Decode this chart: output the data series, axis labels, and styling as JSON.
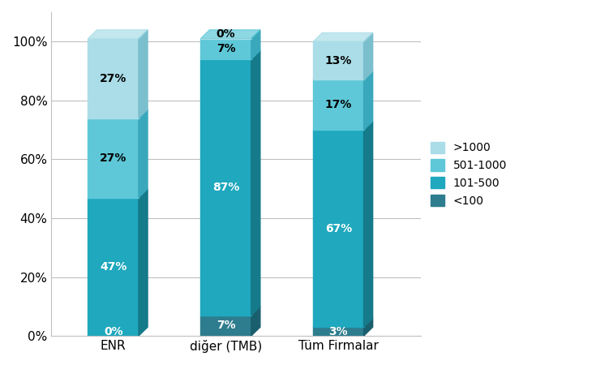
{
  "categories": [
    "ENR",
    "diğer (TMB)",
    "Tüm Firmalar"
  ],
  "series": {
    "<100": [
      0,
      7,
      3
    ],
    "101-500": [
      47,
      87,
      67
    ],
    "501-1000": [
      27,
      7,
      17
    ],
    ">1000": [
      27,
      0,
      13
    ]
  },
  "colors": {
    "<100": "#2d7d8e",
    "101-500": "#1fa8be",
    "501-1000": "#5ec8d8",
    ">1000": "#aadde8"
  },
  "colors_dark": {
    "<100": "#1a5f6d",
    "101-500": "#157a8a",
    "501-1000": "#3aa8bc",
    ">1000": "#7bbfce"
  },
  "legend_labels": [
    ">1000",
    "501-1000",
    "101-500",
    "<100"
  ],
  "ylim": [
    0,
    110
  ],
  "yticks": [
    0,
    20,
    40,
    60,
    80,
    100
  ],
  "yticklabels": [
    "0%",
    "20%",
    "40%",
    "60%",
    "80%",
    "100%"
  ],
  "bar_width": 0.45,
  "background_color": "#ffffff",
  "grid_color": "#c0c0c0",
  "text_fontsize": 10,
  "legend_fontsize": 10,
  "label_colors": {
    "<100": "white",
    "101-500": "white",
    "501-1000": "black",
    ">1000": "black"
  }
}
